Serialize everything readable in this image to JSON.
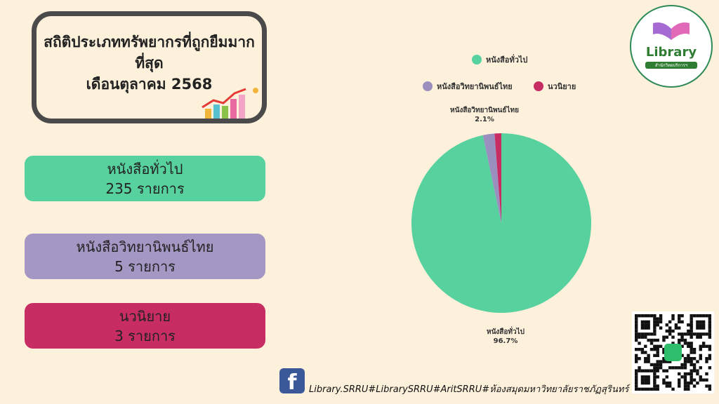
{
  "title": {
    "line1": "สถิติประเภททรัพยากรที่ถูกยืมมากที่สุด",
    "line2": "เดือนตุลาคม 2568"
  },
  "cards": [
    {
      "name": "หนังสือทั่วไป",
      "count": "235 รายการ",
      "color": "#57d19e"
    },
    {
      "name": "หนังสือวิทยานิพนธ์ไทย",
      "count": "5 รายการ",
      "color": "#a597c4"
    },
    {
      "name": "นวนิยาย",
      "count": "3 รายการ",
      "color": "#c72c63"
    }
  ],
  "chart_data": {
    "type": "pie",
    "categories": [
      "หนังสือทั่วไป",
      "หนังสือวิทยานิพนธ์ไทย",
      "นวนิยาย"
    ],
    "values": [
      96.7,
      2.1,
      1.2
    ],
    "colors": [
      "#57d19e",
      "#9a8fbf",
      "#c72c63"
    ],
    "data_labels": [
      {
        "category": "หนังสือทั่วไป",
        "text": "96.7%"
      },
      {
        "category": "หนังสือวิทยานิพนธ์ไทย",
        "text": "2.1%"
      }
    ],
    "legend_placement": "top"
  },
  "logo": {
    "text": "Library",
    "subtitle": "สำนักวิทยบริการฯ"
  },
  "footer": {
    "icon": "facebook-icon",
    "text": "Library.SRRU#LibrarySRRU#AritSRRU#ห้องสมุดมหาวิทยาลัยราชภัฏสุรินทร์"
  }
}
